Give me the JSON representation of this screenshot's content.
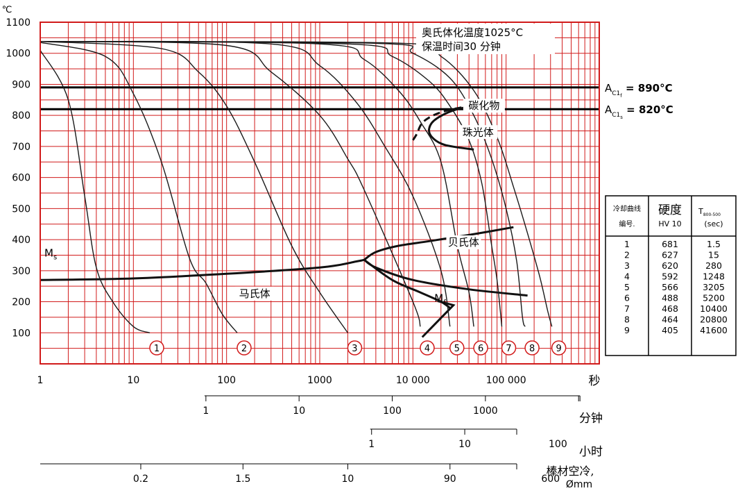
{
  "chart_data": {
    "type": "line",
    "y_unit": "℃",
    "ylim": [
      0,
      1100
    ],
    "y_ticks": [
      100,
      200,
      300,
      400,
      500,
      600,
      700,
      800,
      900,
      1000,
      1100
    ],
    "x_scale": "log",
    "xlim": [
      1,
      1000000
    ],
    "x_tick_labels": [
      {
        "value": 1,
        "label": "1"
      },
      {
        "value": 10,
        "label": "10"
      },
      {
        "value": 100,
        "label": "100"
      },
      {
        "value": 1000,
        "label": "1000"
      },
      {
        "value": 10000,
        "label": "10 000"
      },
      {
        "value": 100000,
        "label": "100 000"
      }
    ],
    "x_unit_label": "秒",
    "grid": true,
    "annotation_lines": [
      "奥氏体化温度1025°C",
      "保温时间30 分钟"
    ],
    "hlines": [
      {
        "y": 890,
        "label_main": "A",
        "label_sub": "C1",
        "label_subsub": "f",
        "label_value": " = 890°C"
      },
      {
        "y": 820,
        "label_main": "A",
        "label_sub": "C1",
        "label_subsub": "s",
        "label_value": " = 820°C"
      }
    ],
    "region_labels": {
      "carbide": "碳化物",
      "pearlite": "珠光体",
      "bainite": "贝氏体",
      "martensite": "马氏体",
      "ms_main": "M",
      "ms_sub": "s",
      "mf_main": "M",
      "mf_sub": "f"
    },
    "cooling_curves": [
      {
        "id": "1",
        "points": [
          [
            1,
            1010
          ],
          [
            2,
            850
          ],
          [
            3,
            540
          ],
          [
            4,
            310
          ],
          [
            6,
            200
          ],
          [
            10,
            120
          ],
          [
            15,
            100
          ]
        ]
      },
      {
        "id": "2",
        "points": [
          [
            1,
            1035
          ],
          [
            5,
            990
          ],
          [
            10,
            870
          ],
          [
            20,
            650
          ],
          [
            40,
            340
          ],
          [
            60,
            260
          ],
          [
            90,
            160
          ],
          [
            130,
            100
          ]
        ]
      },
      {
        "id": "3",
        "points": [
          [
            1,
            1038
          ],
          [
            20,
            1015
          ],
          [
            50,
            940
          ],
          [
            100,
            830
          ],
          [
            200,
            650
          ],
          [
            500,
            380
          ],
          [
            1000,
            230
          ],
          [
            2000,
            100
          ]
        ]
      },
      {
        "id": "4",
        "points": [
          [
            1,
            1038
          ],
          [
            100,
            1025
          ],
          [
            300,
            940
          ],
          [
            1000,
            800
          ],
          [
            2000,
            660
          ],
          [
            3000,
            560
          ],
          [
            10000,
            200
          ],
          [
            12000,
            120
          ]
        ]
      },
      {
        "id": "5",
        "points": [
          [
            1,
            1038
          ],
          [
            300,
            1030
          ],
          [
            1000,
            960
          ],
          [
            2500,
            840
          ],
          [
            5000,
            700
          ],
          [
            10000,
            540
          ],
          [
            20000,
            300
          ],
          [
            25000,
            120
          ]
        ]
      },
      {
        "id": "6",
        "points": [
          [
            1,
            1038
          ],
          [
            1000,
            1030
          ],
          [
            3000,
            980
          ],
          [
            7000,
            880
          ],
          [
            12000,
            780
          ],
          [
            20000,
            650
          ],
          [
            30000,
            380
          ],
          [
            40000,
            230
          ],
          [
            45000,
            120
          ]
        ]
      },
      {
        "id": "7",
        "points": [
          [
            1,
            1038
          ],
          [
            2000,
            1030
          ],
          [
            6000,
            990
          ],
          [
            15000,
            910
          ],
          [
            25000,
            830
          ],
          [
            40000,
            720
          ],
          [
            55000,
            580
          ],
          [
            70000,
            380
          ],
          [
            80000,
            270
          ],
          [
            90000,
            120
          ]
        ]
      },
      {
        "id": "8",
        "points": [
          [
            1,
            1038
          ],
          [
            4000,
            1032
          ],
          [
            10000,
            1000
          ],
          [
            25000,
            920
          ],
          [
            45000,
            800
          ],
          [
            70000,
            660
          ],
          [
            100000,
            500
          ],
          [
            130000,
            330
          ],
          [
            150000,
            150
          ],
          [
            160000,
            120
          ]
        ]
      },
      {
        "id": "9",
        "points": [
          [
            1,
            1038
          ],
          [
            8000,
            1032
          ],
          [
            20000,
            990
          ],
          [
            45000,
            880
          ],
          [
            80000,
            730
          ],
          [
            120000,
            570
          ],
          [
            170000,
            420
          ],
          [
            230000,
            280
          ],
          [
            280000,
            170
          ],
          [
            310000,
            120
          ]
        ]
      }
    ],
    "curve_number_labels": [
      "1",
      "2",
      "3",
      "4",
      "5",
      "6",
      "7",
      "8",
      "9"
    ],
    "bainite_boundary": {
      "ms_line": [
        [
          1,
          270
        ],
        [
          10,
          275
        ],
        [
          100,
          290
        ],
        [
          1000,
          310
        ],
        [
          2500,
          330
        ],
        [
          3000,
          335
        ]
      ],
      "bainite_start": [
        [
          3000,
          335
        ],
        [
          4000,
          360
        ],
        [
          7000,
          380
        ],
        [
          15000,
          395
        ],
        [
          40000,
          415
        ],
        [
          120000,
          440
        ]
      ],
      "bainite_finish": [
        [
          3000,
          335
        ],
        [
          4000,
          310
        ],
        [
          10000,
          270
        ],
        [
          40000,
          240
        ],
        [
          170000,
          220
        ]
      ],
      "mf_line": [
        [
          3000,
          335
        ],
        [
          6000,
          270
        ],
        [
          12000,
          230
        ],
        [
          20000,
          200
        ],
        [
          25000,
          180
        ]
      ]
    },
    "pearlite_boundary": {
      "start_nose": [
        [
          70000,
          840
        ],
        [
          30000,
          820
        ],
        [
          18000,
          790
        ],
        [
          15000,
          760
        ],
        [
          16000,
          730
        ],
        [
          22000,
          705
        ],
        [
          45000,
          690
        ]
      ],
      "carbide_dashed": [
        [
          75000,
          840
        ],
        [
          40000,
          830
        ],
        [
          20000,
          810
        ],
        [
          13000,
          780
        ],
        [
          11000,
          740
        ],
        [
          10000,
          720
        ]
      ]
    },
    "secondary_axes": [
      {
        "unit_label": "分钟",
        "ticks": [
          {
            "value": 60,
            "label": "1"
          },
          {
            "value": 600,
            "label": "10"
          },
          {
            "value": 6000,
            "label": "100"
          },
          {
            "value": 60000,
            "label": "1000"
          }
        ]
      },
      {
        "unit_label": "小时",
        "ticks": [
          {
            "value": 3600,
            "label": "1"
          },
          {
            "value": 36000,
            "label": "10"
          },
          {
            "value": 360000,
            "label": "100"
          }
        ]
      },
      {
        "unit_label_line1": "棒材空冷,",
        "unit_label_line2": "Ømm",
        "ticks": [
          {
            "value": 12,
            "label": "0.2"
          },
          {
            "value": 150,
            "label": "1.5"
          },
          {
            "value": 2000,
            "label": "10"
          },
          {
            "value": 25000,
            "label": "90"
          },
          {
            "value": 300000,
            "label": "600"
          }
        ]
      }
    ],
    "legend_table": {
      "headers": [
        {
          "main": "冷却曲线",
          "second": "编号."
        },
        {
          "main": "硬度",
          "second": "HV 10"
        },
        {
          "main": "T",
          "sub": "800-500",
          "second": "(sec)"
        }
      ],
      "rows": [
        [
          "1",
          "681",
          "1.5"
        ],
        [
          "2",
          "627",
          "15"
        ],
        [
          "3",
          "620",
          "280"
        ],
        [
          "4",
          "592",
          "1248"
        ],
        [
          "5",
          "566",
          "3205"
        ],
        [
          "6",
          "488",
          "5200"
        ],
        [
          "7",
          "468",
          "10400"
        ],
        [
          "8",
          "464",
          "20800"
        ],
        [
          "9",
          "405",
          "41600"
        ]
      ]
    }
  }
}
